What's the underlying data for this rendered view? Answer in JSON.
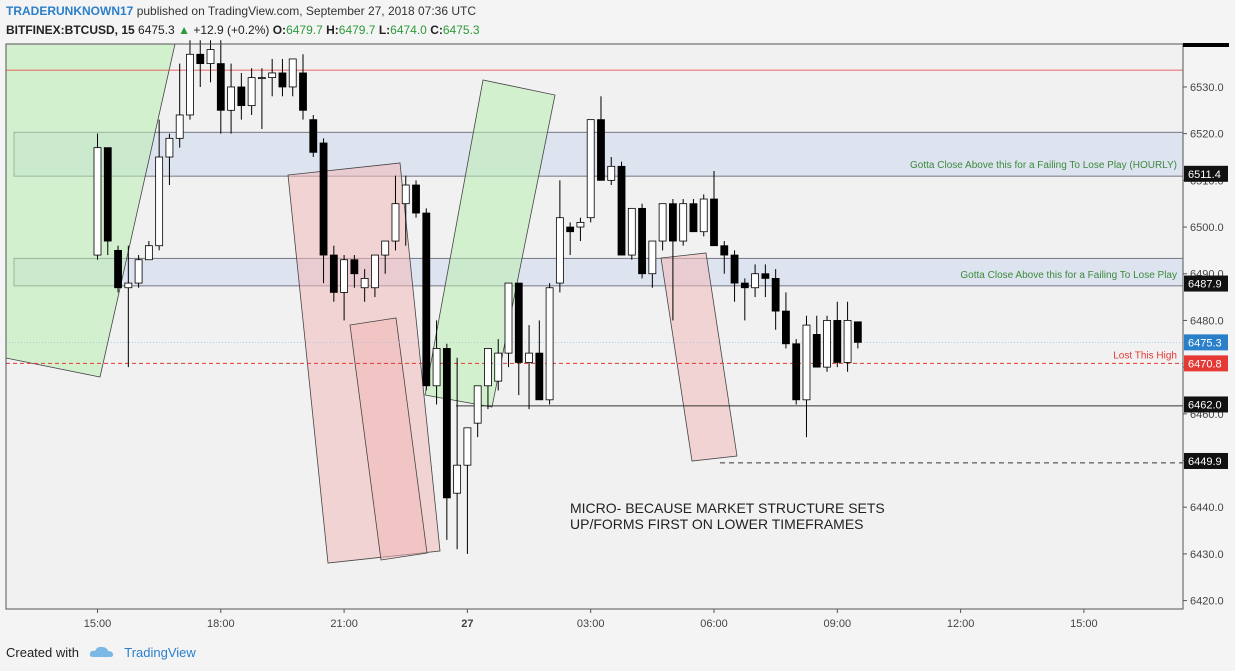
{
  "header": {
    "user": "TRADERUNKNOWN17",
    "published": "published on TradingView.com, September 27, 2018 07:36 UTC",
    "symbol": "BITFINEX:BTCUSD, 15",
    "last": "6475.3",
    "change": "+12.9 (+0.2%)",
    "o_label": "O:",
    "o_value": "6479.7",
    "h_label": "H:",
    "h_value": "6479.7",
    "l_label": "L:",
    "l_value": "6474.0",
    "c_label": "C:",
    "c_value": "6475.3"
  },
  "footer": {
    "created_with": "Created with",
    "brand": "TradingView"
  },
  "colors": {
    "bull": "#ffffff",
    "bear": "#000000",
    "price_blue": "#2a7fc9",
    "alert_red": "#e53935",
    "zone_fill": "#dde3ef",
    "green_box": "#b9eeb0",
    "red_box": "#f2b9b9"
  },
  "chart_data": {
    "type": "candlestick",
    "symbol": "BITFINEX:BTCUSD",
    "interval": "15",
    "y_ticks": [
      6420.0,
      6430.0,
      6440.0,
      6450.0,
      6460.0,
      6470.0,
      6480.0,
      6490.0,
      6500.0,
      6510.0,
      6520.0,
      6530.0
    ],
    "ylim": [
      6418.2,
      6539.2
    ],
    "x_ticks": [
      {
        "label": "15:00",
        "index": 0
      },
      {
        "label": "18:00",
        "index": 12
      },
      {
        "label": "21:00",
        "index": 24
      },
      {
        "label": "27",
        "index": 36
      },
      {
        "label": "03:00",
        "index": 48
      },
      {
        "label": "06:00",
        "index": 60
      },
      {
        "label": "09:00",
        "index": 72
      },
      {
        "label": "12:00",
        "index": 84
      },
      {
        "label": "15:00",
        "index": 96
      }
    ],
    "candles": [
      {
        "o": 6494,
        "h": 6520,
        "l": 6493,
        "c": 6517
      },
      {
        "o": 6517,
        "h": 6517,
        "l": 6494,
        "c": 6497
      },
      {
        "o": 6495,
        "h": 6496,
        "l": 6486,
        "c": 6487
      },
      {
        "o": 6487,
        "h": 6496,
        "l": 6470,
        "c": 6488
      },
      {
        "o": 6488,
        "h": 6494,
        "l": 6487,
        "c": 6493
      },
      {
        "o": 6493,
        "h": 6497,
        "l": 6493,
        "c": 6496
      },
      {
        "o": 6496,
        "h": 6523,
        "l": 6495,
        "c": 6515
      },
      {
        "o": 6515,
        "h": 6520,
        "l": 6509,
        "c": 6519
      },
      {
        "o": 6519,
        "h": 6535,
        "l": 6517,
        "c": 6524
      },
      {
        "o": 6524,
        "h": 6540,
        "l": 6523,
        "c": 6537
      },
      {
        "o": 6537,
        "h": 6540,
        "l": 6530,
        "c": 6535
      },
      {
        "o": 6535,
        "h": 6540,
        "l": 6531,
        "c": 6538
      },
      {
        "o": 6535,
        "h": 6540,
        "l": 6520,
        "c": 6525
      },
      {
        "o": 6525,
        "h": 6535,
        "l": 6520,
        "c": 6530
      },
      {
        "o": 6530,
        "h": 6533,
        "l": 6523,
        "c": 6526
      },
      {
        "o": 6526,
        "h": 6534,
        "l": 6524,
        "c": 6532
      },
      {
        "o": 6532,
        "h": 6534,
        "l": 6521,
        "c": 6532
      },
      {
        "o": 6532,
        "h": 6536,
        "l": 6528,
        "c": 6533
      },
      {
        "o": 6533,
        "h": 6536,
        "l": 6528,
        "c": 6530
      },
      {
        "o": 6530,
        "h": 6536,
        "l": 6528,
        "c": 6536
      },
      {
        "o": 6533,
        "h": 6537,
        "l": 6523,
        "c": 6525
      },
      {
        "o": 6523,
        "h": 6524,
        "l": 6515,
        "c": 6516
      },
      {
        "o": 6518,
        "h": 6519,
        "l": 6488,
        "c": 6494
      },
      {
        "o": 6494,
        "h": 6496,
        "l": 6484,
        "c": 6486
      },
      {
        "o": 6486,
        "h": 6494,
        "l": 6480,
        "c": 6493
      },
      {
        "o": 6493,
        "h": 6494,
        "l": 6487,
        "c": 6490
      },
      {
        "o": 6487,
        "h": 6491,
        "l": 6484,
        "c": 6489
      },
      {
        "o": 6487,
        "h": 6494,
        "l": 6485,
        "c": 6494
      },
      {
        "o": 6494,
        "h": 6496,
        "l": 6490,
        "c": 6497
      },
      {
        "o": 6497,
        "h": 6511,
        "l": 6495,
        "c": 6505
      },
      {
        "o": 6505,
        "h": 6511,
        "l": 6496,
        "c": 6509
      },
      {
        "o": 6509,
        "h": 6510,
        "l": 6502,
        "c": 6503
      },
      {
        "o": 6503,
        "h": 6504,
        "l": 6465,
        "c": 6466
      },
      {
        "o": 6466,
        "h": 6480,
        "l": 6462,
        "c": 6474
      },
      {
        "o": 6474,
        "h": 6475,
        "l": 6433,
        "c": 6442
      },
      {
        "o": 6443,
        "h": 6472,
        "l": 6431,
        "c": 6449
      },
      {
        "o": 6449,
        "h": 6457,
        "l": 6430,
        "c": 6457
      },
      {
        "o": 6458,
        "h": 6465,
        "l": 6455,
        "c": 6466
      },
      {
        "o": 6466,
        "h": 6474,
        "l": 6461,
        "c": 6474
      },
      {
        "o": 6467,
        "h": 6476,
        "l": 6465,
        "c": 6473
      },
      {
        "o": 6473,
        "h": 6488,
        "l": 6470,
        "c": 6488
      },
      {
        "o": 6488,
        "h": 6488,
        "l": 6464,
        "c": 6471
      },
      {
        "o": 6471,
        "h": 6479,
        "l": 6461,
        "c": 6473
      },
      {
        "o": 6473,
        "h": 6480,
        "l": 6463,
        "c": 6463
      },
      {
        "o": 6463,
        "h": 6488,
        "l": 6462,
        "c": 6487
      },
      {
        "o": 6488,
        "h": 6510,
        "l": 6486,
        "c": 6502
      },
      {
        "o": 6500,
        "h": 6501,
        "l": 6494,
        "c": 6499
      },
      {
        "o": 6500,
        "h": 6502,
        "l": 6497,
        "c": 6501
      },
      {
        "o": 6502,
        "h": 6523,
        "l": 6501,
        "c": 6523
      },
      {
        "o": 6523,
        "h": 6528,
        "l": 6510,
        "c": 6510
      },
      {
        "o": 6510,
        "h": 6515,
        "l": 6509,
        "c": 6513
      },
      {
        "o": 6513,
        "h": 6514,
        "l": 6494,
        "c": 6494
      },
      {
        "o": 6494,
        "h": 6504,
        "l": 6493,
        "c": 6504
      },
      {
        "o": 6504,
        "h": 6505,
        "l": 6489,
        "c": 6490
      },
      {
        "o": 6490,
        "h": 6496,
        "l": 6487,
        "c": 6497
      },
      {
        "o": 6497,
        "h": 6505,
        "l": 6495,
        "c": 6505
      },
      {
        "o": 6505,
        "h": 6506,
        "l": 6480,
        "c": 6497
      },
      {
        "o": 6497,
        "h": 6506,
        "l": 6496,
        "c": 6505
      },
      {
        "o": 6505,
        "h": 6506,
        "l": 6499,
        "c": 6499
      },
      {
        "o": 6499,
        "h": 6507,
        "l": 6498,
        "c": 6506
      },
      {
        "o": 6506,
        "h": 6512,
        "l": 6496,
        "c": 6496
      },
      {
        "o": 6496,
        "h": 6497,
        "l": 6490,
        "c": 6494
      },
      {
        "o": 6494,
        "h": 6495,
        "l": 6484,
        "c": 6488
      },
      {
        "o": 6488,
        "h": 6489,
        "l": 6480,
        "c": 6487
      },
      {
        "o": 6487,
        "h": 6492,
        "l": 6485,
        "c": 6490
      },
      {
        "o": 6490,
        "h": 6492,
        "l": 6485,
        "c": 6489
      },
      {
        "o": 6489,
        "h": 6491,
        "l": 6478,
        "c": 6482
      },
      {
        "o": 6482,
        "h": 6486,
        "l": 6474,
        "c": 6475
      },
      {
        "o": 6475,
        "h": 6476,
        "l": 6462,
        "c": 6463
      },
      {
        "o": 6463,
        "h": 6481,
        "l": 6455,
        "c": 6479
      },
      {
        "o": 6477,
        "h": 6481,
        "l": 6470,
        "c": 6470
      },
      {
        "o": 6470,
        "h": 6481,
        "l": 6469,
        "c": 6480
      },
      {
        "o": 6480,
        "h": 6484,
        "l": 6470,
        "c": 6471
      },
      {
        "o": 6471,
        "h": 6484,
        "l": 6469,
        "c": 6480
      },
      {
        "o": 6479.7,
        "h": 6479.7,
        "l": 6474.0,
        "c": 6475.3
      }
    ],
    "price_labels": [
      {
        "value": "6511.4",
        "price": 6511.4,
        "style": "dark"
      },
      {
        "value": "6487.9",
        "price": 6487.9,
        "style": "dark"
      },
      {
        "value": "6475.3",
        "price": 6475.3,
        "style": "blue"
      },
      {
        "value": "6470.8",
        "price": 6470.8,
        "style": "red"
      },
      {
        "value": "6462.0",
        "price": 6462.0,
        "style": "dark"
      },
      {
        "value": "6449.9",
        "price": 6449.9,
        "style": "dark"
      }
    ],
    "zones": [
      {
        "top": 6520.3,
        "bottom": 6510.9,
        "label": "Gotta Close Above this for a Failing To Lose Play (HOURLY)"
      },
      {
        "top": 6493.3,
        "bottom": 6487.4,
        "label": "Gotta Close Above this for a Failing To Lose Play"
      }
    ],
    "lines": [
      {
        "price": 6533.6,
        "style": "solid-red"
      },
      {
        "price": 6470.8,
        "style": "dashed-red",
        "label": "Lost This High"
      },
      {
        "price": 6461.7,
        "style": "solid-dark"
      },
      {
        "price": 6449.5,
        "style": "dashed-dark"
      }
    ],
    "annotation": [
      "MICRO- BECAUSE MARKET STRUCTURE SETS",
      "UP/FORMS FIRST ON LOWER TIMEFRAMES"
    ]
  }
}
